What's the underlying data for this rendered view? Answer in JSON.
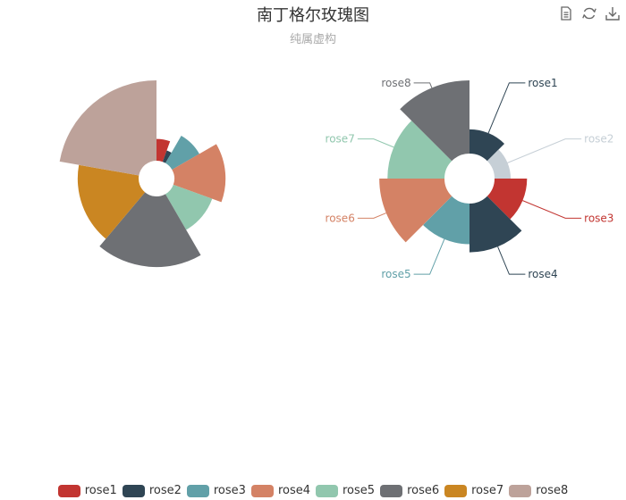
{
  "title": "南丁格尔玫瑰图",
  "subtitle": "纯属虚构",
  "toolbox": [
    {
      "name": "data-view-icon"
    },
    {
      "name": "restore-icon"
    },
    {
      "name": "save-image-icon"
    }
  ],
  "chart_data": [
    {
      "type": "pie",
      "rose_type": "radius",
      "label_display": "none",
      "categories": [
        "rose1",
        "rose2",
        "rose3",
        "rose4",
        "rose5",
        "rose6",
        "rose7",
        "rose8"
      ],
      "values": [
        10,
        5,
        15,
        25,
        20,
        35,
        30,
        40
      ],
      "colors": [
        "#c23531",
        "#2f4554",
        "#61a0a8",
        "#d48265",
        "#91c7ae",
        "#6e7074",
        "#ca8622",
        "#bda29a"
      ]
    },
    {
      "type": "pie",
      "rose_type": "area",
      "label_display": "outside",
      "categories": [
        "rose1",
        "rose2",
        "rose3",
        "rose4",
        "rose5",
        "rose6",
        "rose7",
        "rose8"
      ],
      "values": [
        10,
        5,
        15,
        25,
        20,
        35,
        30,
        40
      ],
      "colors": [
        "#2f4554",
        "#c6cfd6",
        "#c23531",
        "#2f4554",
        "#61a0a8",
        "#d48265",
        "#91c7ae",
        "#6e7074"
      ]
    }
  ],
  "legend": {
    "placement": "bottom",
    "items": [
      {
        "label": "rose1",
        "color": "#c23531"
      },
      {
        "label": "rose2",
        "color": "#2f4554"
      },
      {
        "label": "rose3",
        "color": "#61a0a8"
      },
      {
        "label": "rose4",
        "color": "#d48265"
      },
      {
        "label": "rose5",
        "color": "#91c7ae"
      },
      {
        "label": "rose6",
        "color": "#6e7074"
      },
      {
        "label": "rose7",
        "color": "#ca8622"
      },
      {
        "label": "rose8",
        "color": "#bda29a"
      }
    ]
  }
}
